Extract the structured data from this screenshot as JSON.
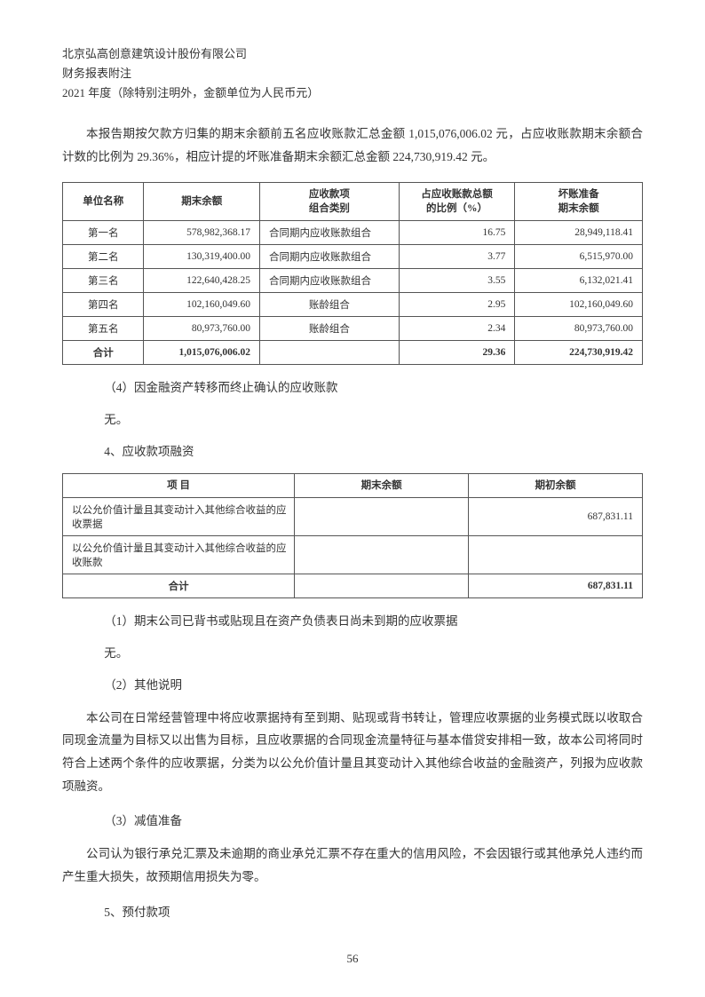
{
  "header": {
    "line1": "北京弘高创意建筑设计股份有限公司",
    "line2": "财务报表附注",
    "line3": "2021 年度（除特别注明外，金额单位为人民币元）"
  },
  "para1": "本报告期按欠款方归集的期末余额前五名应收账款汇总金额 1,015,076,006.02 元，占应收账款期末余额合计数的比例为 29.36%，相应计提的坏账准备期末余额汇总金额 224,730,919.42 元。",
  "table1": {
    "headers": [
      "单位名称",
      "期末余额",
      "应收款项\n组合类别",
      "占应收账款总额\n的比例（%）",
      "坏账准备\n期末余额"
    ],
    "rows": [
      [
        "第一名",
        "578,982,368.17",
        "合同期内应收账款组合",
        "16.75",
        "28,949,118.41"
      ],
      [
        "第二名",
        "130,319,400.00",
        "合同期内应收账款组合",
        "3.77",
        "6,515,970.00"
      ],
      [
        "第三名",
        "122,640,428.25",
        "合同期内应收账款组合",
        "3.55",
        "6,132,021.41"
      ],
      [
        "第四名",
        "102,160,049.60",
        "账龄组合",
        "2.95",
        "102,160,049.60"
      ],
      [
        "第五名",
        "80,973,760.00",
        "账龄组合",
        "2.34",
        "80,973,760.00"
      ]
    ],
    "total": [
      "合计",
      "1,015,076,006.02",
      "",
      "29.36",
      "224,730,919.42"
    ]
  },
  "sec4": "（4）因金融资产转移而终止确认的应收账款",
  "none1": "无。",
  "sec_item4": "4、应收款项融资",
  "table2": {
    "headers": [
      "项 目",
      "期末余额",
      "期初余额"
    ],
    "rows": [
      [
        "以公允价值计量且其变动计入其他综合收益的应收票据",
        "",
        "687,831.11"
      ],
      [
        "以公允价值计量且其变动计入其他综合收益的应收账款",
        "",
        ""
      ]
    ],
    "total": [
      "合计",
      "",
      "687,831.11"
    ]
  },
  "sec1b": "（1）期末公司已背书或贴现且在资产负债表日尚未到期的应收票据",
  "none2": "无。",
  "sec2b": "（2）其他说明",
  "para2": "本公司在日常经营管理中将应收票据持有至到期、贴现或背书转让，管理应收票据的业务模式既以收取合同现金流量为目标又以出售为目标，且应收票据的合同现金流量特征与基本借贷安排相一致，故本公司将同时符合上述两个条件的应收票据，分类为以公允价值计量且其变动计入其他综合收益的金融资产，列报为应收款项融资。",
  "sec3b": "（3）减值准备",
  "para3": "公司认为银行承兑汇票及未逾期的商业承兑汇票不存在重大的信用风险，不会因银行或其他承兑人违约而产生重大损失，故预期信用损失为零。",
  "sec_item5": "5、预付款项",
  "page_number": "56"
}
